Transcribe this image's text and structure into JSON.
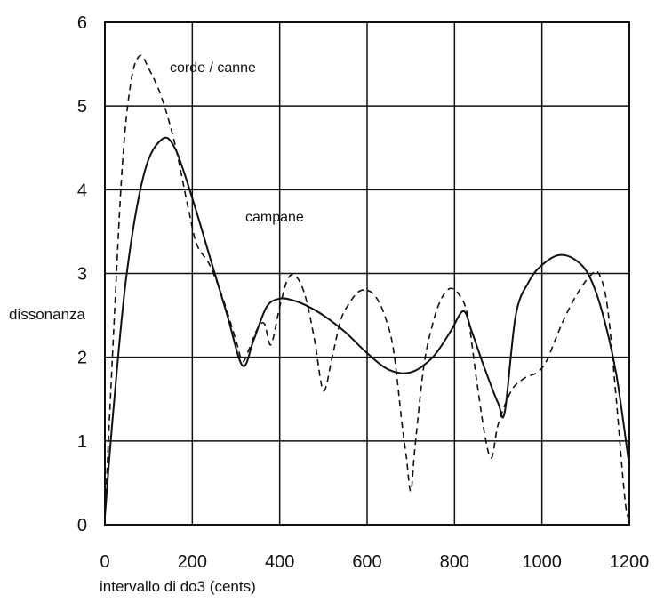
{
  "chart_data": {
    "type": "line",
    "xlabel": "intervallo di do3 (cents)",
    "ylabel": "dissonanza",
    "xlim": [
      0,
      1200
    ],
    "ylim": [
      0,
      6
    ],
    "xticks": [
      "0",
      "200",
      "400",
      "600",
      "800",
      "1000",
      "1200"
    ],
    "yticks": [
      "0",
      "1",
      "2",
      "3",
      "4",
      "5",
      "6"
    ],
    "grid": true,
    "annotations": [
      {
        "text": "corde / canne",
        "series": "dashed"
      },
      {
        "text": "campane",
        "series": "solid"
      }
    ],
    "series": [
      {
        "style": "solid",
        "color": "#111111",
        "x": [
          0,
          20,
          50,
          90,
          130,
          160,
          200,
          240,
          280,
          315,
          340,
          370,
          400,
          430,
          460,
          500,
          550,
          600,
          650,
          700,
          750,
          790,
          820,
          840,
          870,
          900,
          915,
          940,
          970,
          1000,
          1040,
          1080,
          1110,
          1140,
          1170,
          1200
        ],
        "y": [
          0.1,
          1.4,
          3.0,
          4.2,
          4.6,
          4.5,
          3.9,
          3.2,
          2.5,
          1.9,
          2.2,
          2.6,
          2.7,
          2.68,
          2.62,
          2.5,
          2.3,
          2.05,
          1.85,
          1.82,
          2.0,
          2.3,
          2.55,
          2.3,
          1.85,
          1.45,
          1.35,
          2.5,
          2.9,
          3.1,
          3.22,
          3.15,
          2.95,
          2.5,
          1.8,
          0.7
        ]
      },
      {
        "style": "dashed",
        "color": "#111111",
        "x": [
          0,
          20,
          40,
          60,
          80,
          100,
          130,
          160,
          190,
          210,
          240,
          270,
          300,
          315,
          330,
          350,
          365,
          380,
          400,
          420,
          440,
          460,
          480,
          500,
          520,
          540,
          560,
          580,
          600,
          620,
          640,
          660,
          680,
          690,
          700,
          710,
          730,
          750,
          770,
          790,
          810,
          830,
          850,
          870,
          885,
          900,
          930,
          960,
          990,
          1010,
          1030,
          1050,
          1080,
          1110,
          1130,
          1150,
          1170,
          1190,
          1200
        ],
        "y": [
          0.1,
          2.3,
          4.3,
          5.3,
          5.6,
          5.45,
          5.1,
          4.55,
          3.8,
          3.35,
          3.1,
          2.7,
          2.2,
          1.95,
          2.1,
          2.35,
          2.4,
          2.15,
          2.6,
          2.95,
          2.95,
          2.7,
          2.2,
          1.6,
          2.0,
          2.45,
          2.65,
          2.78,
          2.8,
          2.72,
          2.5,
          2.1,
          1.2,
          0.8,
          0.4,
          0.95,
          1.9,
          2.4,
          2.7,
          2.82,
          2.75,
          2.5,
          1.75,
          1.05,
          0.8,
          1.2,
          1.6,
          1.75,
          1.82,
          1.95,
          2.2,
          2.45,
          2.75,
          2.97,
          3.0,
          2.6,
          1.5,
          0.3,
          0.05
        ]
      }
    ]
  }
}
